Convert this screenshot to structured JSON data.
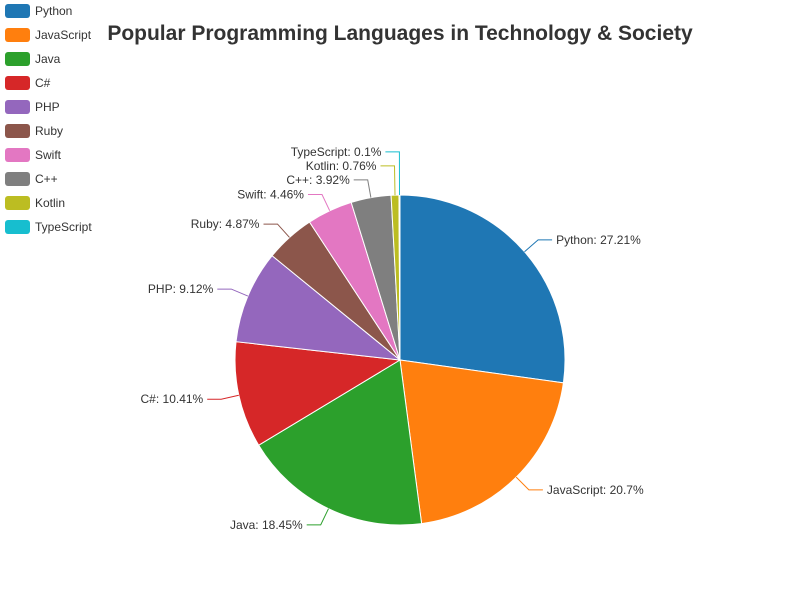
{
  "chart_data": {
    "type": "pie",
    "title": "Popular Programming Languages in Technology & Society",
    "legend_position": "top-left",
    "slices": [
      {
        "name": "Python",
        "value": 27.21,
        "label": "Python: 27.21%",
        "color": "#1f77b4"
      },
      {
        "name": "JavaScript",
        "value": 20.7,
        "label": "JavaScript: 20.7%",
        "color": "#ff7f0e"
      },
      {
        "name": "Java",
        "value": 18.45,
        "label": "Java: 18.45%",
        "color": "#2ca02c"
      },
      {
        "name": "C#",
        "value": 10.41,
        "label": "C#: 10.41%",
        "color": "#d62728"
      },
      {
        "name": "PHP",
        "value": 9.12,
        "label": "PHP: 9.12%",
        "color": "#9467bd"
      },
      {
        "name": "Ruby",
        "value": 4.87,
        "label": "Ruby: 4.87%",
        "color": "#8c564b"
      },
      {
        "name": "Swift",
        "value": 4.46,
        "label": "Swift: 4.46%",
        "color": "#e377c2"
      },
      {
        "name": "C++",
        "value": 3.92,
        "label": "C++: 3.92%",
        "color": "#7f7f7f"
      },
      {
        "name": "Kotlin",
        "value": 0.76,
        "label": "Kotlin: 0.76%",
        "color": "#bcbd22"
      },
      {
        "name": "TypeScript",
        "value": 0.1,
        "label": "TypeScript: 0.1%",
        "color": "#17becf"
      }
    ]
  }
}
